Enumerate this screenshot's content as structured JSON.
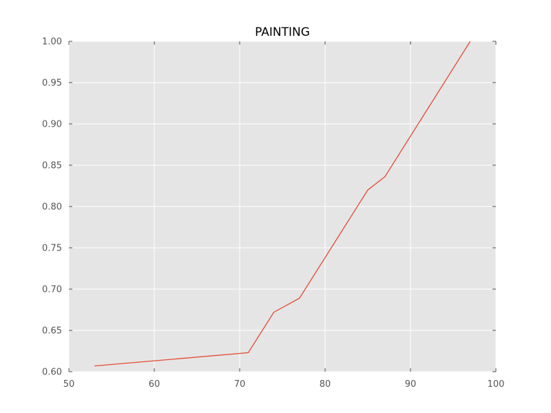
{
  "chart_data": {
    "type": "line",
    "title": "PAINTING",
    "xlabel": "",
    "ylabel": "",
    "xlim": [
      50,
      100
    ],
    "ylim": [
      0.6,
      1.0
    ],
    "x_ticks": [
      50,
      60,
      70,
      80,
      90,
      100
    ],
    "y_ticks": [
      0.6,
      0.65,
      0.7,
      0.75,
      0.8,
      0.85,
      0.9,
      0.95,
      1.0
    ],
    "x_tick_labels": [
      "50",
      "60",
      "70",
      "80",
      "90",
      "100"
    ],
    "y_tick_labels": [
      "0.60",
      "0.65",
      "0.70",
      "0.75",
      "0.80",
      "0.85",
      "0.90",
      "0.95",
      "1.00"
    ],
    "grid": true,
    "legend": "none",
    "background_color": "#e5e5e5",
    "grid_color": "#ffffff",
    "series": [
      {
        "color": "#e24a33",
        "x": [
          53,
          71,
          74,
          77,
          85,
          87,
          97
        ],
        "y": [
          0.607,
          0.623,
          0.672,
          0.689,
          0.82,
          0.836,
          1.0
        ]
      }
    ]
  }
}
